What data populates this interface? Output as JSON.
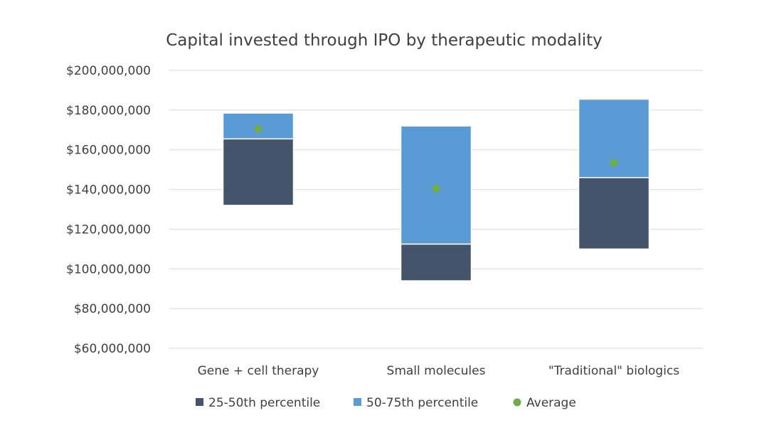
{
  "chart_data": {
    "type": "bar",
    "title": "Capital invested through IPO by therapeutic modality",
    "categories": [
      "Gene + cell therapy",
      "Small molecules",
      "\"Traditional\" biologics"
    ],
    "y_ticks": [
      "$60,000,000",
      "$80,000,000",
      "$100,000,000",
      "$120,000,000",
      "$140,000,000",
      "$160,000,000",
      "$180,000,000",
      "$200,000,000"
    ],
    "ylim": [
      60000000,
      200000000
    ],
    "grid": true,
    "legend_position": "bottom",
    "series": [
      {
        "name": "25-50th percentile",
        "kind": "floating-bar",
        "color": "#44546a",
        "low": [
          132000000,
          94000000,
          110000000
        ],
        "high": [
          165500000,
          112500000,
          146000000
        ]
      },
      {
        "name": "50-75th percentile",
        "kind": "floating-bar",
        "color": "#5b9bd5",
        "low": [
          165500000,
          112500000,
          146000000
        ],
        "high": [
          178500000,
          172000000,
          185500000
        ]
      },
      {
        "name": "Average",
        "kind": "marker",
        "color": "#70ad47",
        "values": [
          170500000,
          140500000,
          153500000
        ]
      }
    ]
  }
}
